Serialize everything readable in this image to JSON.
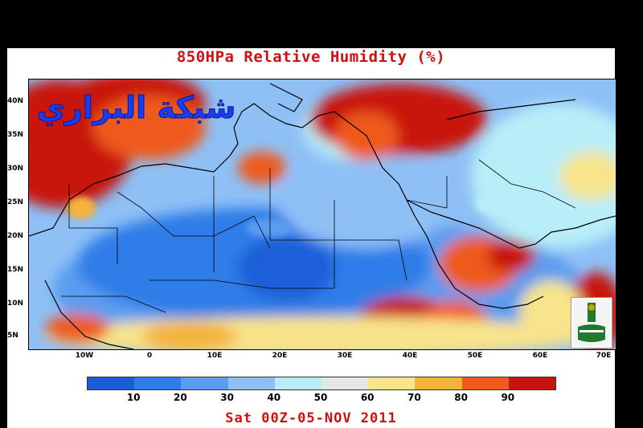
{
  "title": "850HPa Relative Humidity (%)",
  "date": "Sat 00Z-05-NOV 2011",
  "watermark": "شبكة البراري",
  "y_axis": [
    "40N",
    "35N",
    "30N",
    "25N",
    "20N",
    "15N",
    "10N",
    "5N"
  ],
  "x_axis": [
    "10W",
    "0",
    "10E",
    "20E",
    "30E",
    "40E",
    "50E",
    "60E",
    "70E"
  ],
  "colorbar": {
    "colors": [
      "#1a5fd8",
      "#2f7de8",
      "#5a9cf0",
      "#8ec0f6",
      "#b8eef8",
      "#e6e6e6",
      "#f8e48a",
      "#f5b33a",
      "#ef5a1f",
      "#c8140f"
    ],
    "labels": [
      "10",
      "20",
      "30",
      "40",
      "50",
      "60",
      "70",
      "80",
      "90"
    ]
  },
  "logo_name": "university-seal-logo",
  "colors": {
    "title": "#d01010",
    "watermark": "#1a3cf0"
  }
}
